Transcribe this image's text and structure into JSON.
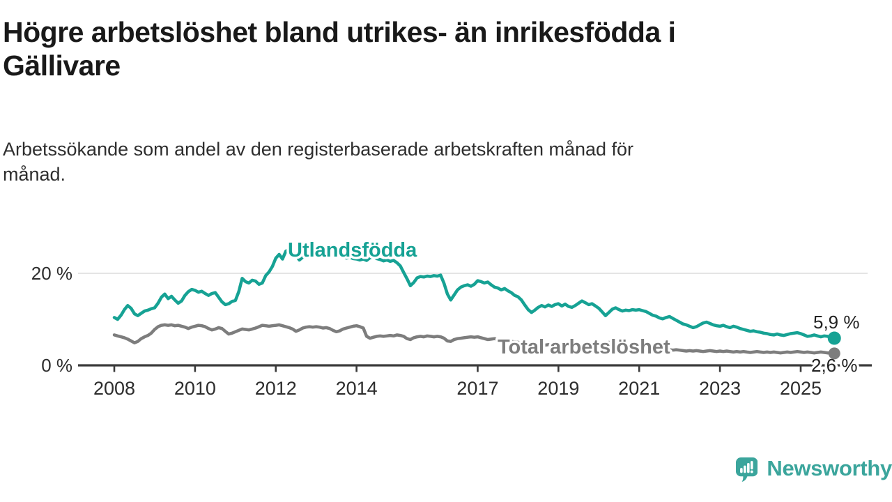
{
  "header": {
    "title_lines": [
      "Högre arbetslöshet bland utrikes- än inrikesfödda i",
      "Gällivare"
    ],
    "subtitle_lines": [
      "Arbetssökande som andel av den registerbaserade arbetskraften månad för",
      "månad."
    ]
  },
  "chart_data": {
    "type": "line",
    "title": "Arbetssökande som andel av den registerbaserade arbetskraften månad för månad",
    "x_unit": "year-month",
    "x_start": 2008.0,
    "x_step_months": 1,
    "x_end": 2025.833,
    "ylim": [
      0,
      29
    ],
    "grid": "horizontal-20-only",
    "legend_position": "inline-labels",
    "y_ticks": [
      {
        "value": 0,
        "label": "0 %",
        "grid": false
      },
      {
        "value": 20,
        "label": "20 %",
        "grid": true
      }
    ],
    "x_ticks": [
      {
        "year": 2008,
        "label": "2008"
      },
      {
        "year": 2010,
        "label": "2010"
      },
      {
        "year": 2012,
        "label": "2012"
      },
      {
        "year": 2014,
        "label": "2014"
      },
      {
        "year": 2017,
        "label": "2017"
      },
      {
        "year": 2019,
        "label": "2019"
      },
      {
        "year": 2021,
        "label": "2021"
      },
      {
        "year": 2023,
        "label": "2023"
      },
      {
        "year": 2025,
        "label": "2025"
      }
    ],
    "series": [
      {
        "name": "Utlandsfödda",
        "color": "#16a294",
        "end_label": "5,9 %",
        "end_value": 5.9,
        "values": [
          10.4,
          10.0,
          10.9,
          12.1,
          13.0,
          12.4,
          11.2,
          10.8,
          11.3,
          11.8,
          12.0,
          12.3,
          12.5,
          13.5,
          14.8,
          15.5,
          14.5,
          15.0,
          14.2,
          13.5,
          14.0,
          15.2,
          16.0,
          16.5,
          16.3,
          15.9,
          16.1,
          15.6,
          15.2,
          15.6,
          15.8,
          14.8,
          13.8,
          13.2,
          13.4,
          13.9,
          14.1,
          16.0,
          18.9,
          18.2,
          17.9,
          18.5,
          18.3,
          17.6,
          17.9,
          19.5,
          20.3,
          21.5,
          23.3,
          24.1,
          23.1,
          24.8,
          25.2,
          24.6,
          23.9,
          22.9,
          23.5,
          24.5,
          25.0,
          25.5,
          25.8,
          25.4,
          24.9,
          25.1,
          24.6,
          24.2,
          23.8,
          24.0,
          23.6,
          23.3,
          23.5,
          23.2,
          23.1,
          22.9,
          23.1,
          22.8,
          23.4,
          23.6,
          23.2,
          23.0,
          22.7,
          22.9,
          22.6,
          22.8,
          22.3,
          21.6,
          20.2,
          18.8,
          17.3,
          18.0,
          19.0,
          19.3,
          19.2,
          19.4,
          19.3,
          19.5,
          19.4,
          19.6,
          17.8,
          15.5,
          14.2,
          15.3,
          16.4,
          17.0,
          17.3,
          17.5,
          17.2,
          17.6,
          18.4,
          18.2,
          17.9,
          18.1,
          17.5,
          17.0,
          16.8,
          16.4,
          16.7,
          16.2,
          15.8,
          15.2,
          14.9,
          14.2,
          13.1,
          12.1,
          11.5,
          12.0,
          12.6,
          13.0,
          12.7,
          13.1,
          12.8,
          13.2,
          13.4,
          12.9,
          13.3,
          12.8,
          12.6,
          13.0,
          13.5,
          14.0,
          13.6,
          13.2,
          13.4,
          12.9,
          12.4,
          11.6,
          10.8,
          11.5,
          12.2,
          12.5,
          12.1,
          11.8,
          12.0,
          11.9,
          12.1,
          12.0,
          12.1,
          11.9,
          11.7,
          11.3,
          10.9,
          10.7,
          10.3,
          10.1,
          10.4,
          10.6,
          10.2,
          9.8,
          9.4,
          9.0,
          8.8,
          8.5,
          8.2,
          8.4,
          8.8,
          9.2,
          9.4,
          9.1,
          8.8,
          8.6,
          8.5,
          8.7,
          8.4,
          8.2,
          8.5,
          8.3,
          8.0,
          7.8,
          7.6,
          7.4,
          7.5,
          7.3,
          7.2,
          7.0,
          6.9,
          6.7,
          6.6,
          6.8,
          6.6,
          6.5,
          6.7,
          6.9,
          7.0,
          7.1,
          6.9,
          6.6,
          6.3,
          6.4,
          6.6,
          6.4,
          6.2,
          6.4,
          6.3,
          6.1,
          5.9
        ]
      },
      {
        "name": "Total arbetslöshet",
        "color": "#7d7d7d",
        "end_label": "2,6 %",
        "end_value": 2.6,
        "values": [
          6.6,
          6.4,
          6.2,
          6.0,
          5.7,
          5.3,
          4.9,
          5.2,
          5.8,
          6.2,
          6.5,
          7.0,
          7.8,
          8.4,
          8.7,
          8.8,
          8.7,
          8.8,
          8.6,
          8.7,
          8.5,
          8.3,
          8.0,
          8.3,
          8.5,
          8.7,
          8.6,
          8.4,
          8.0,
          7.7,
          7.9,
          8.2,
          8.0,
          7.4,
          6.8,
          7.0,
          7.3,
          7.6,
          7.9,
          7.8,
          7.7,
          7.9,
          8.1,
          8.4,
          8.7,
          8.6,
          8.5,
          8.6,
          8.7,
          8.8,
          8.6,
          8.4,
          8.2,
          7.9,
          7.4,
          7.7,
          8.1,
          8.3,
          8.4,
          8.3,
          8.4,
          8.3,
          8.1,
          8.2,
          8.0,
          7.6,
          7.3,
          7.5,
          7.9,
          8.1,
          8.3,
          8.5,
          8.6,
          8.4,
          8.1,
          6.3,
          5.9,
          6.1,
          6.3,
          6.4,
          6.3,
          6.4,
          6.5,
          6.4,
          6.6,
          6.5,
          6.3,
          5.8,
          5.6,
          6.0,
          6.2,
          6.3,
          6.2,
          6.4,
          6.3,
          6.2,
          6.3,
          6.2,
          5.9,
          5.3,
          5.2,
          5.6,
          5.8,
          5.9,
          6.0,
          6.1,
          6.2,
          6.1,
          6.2,
          6.0,
          5.8,
          5.6,
          5.7,
          5.8,
          5.6,
          5.5,
          5.4,
          5.3,
          5.2,
          5.1,
          5.0,
          4.9,
          4.8,
          4.7,
          4.6,
          4.7,
          4.6,
          4.5,
          4.4,
          4.5,
          4.4,
          4.3,
          4.4,
          4.3,
          4.2,
          4.3,
          4.2,
          4.1,
          4.2,
          4.3,
          4.2,
          4.1,
          4.2,
          4.3,
          4.5,
          4.6,
          4.8,
          5.0,
          4.9,
          4.8,
          4.7,
          4.6,
          4.5,
          4.4,
          4.3,
          4.2,
          4.1,
          4.0,
          3.9,
          3.8,
          3.7,
          3.6,
          3.5,
          3.6,
          3.5,
          3.4,
          3.3,
          3.4,
          3.3,
          3.2,
          3.1,
          3.2,
          3.1,
          3.2,
          3.1,
          3.0,
          3.1,
          3.2,
          3.1,
          3.0,
          3.1,
          3.0,
          3.1,
          3.0,
          2.9,
          3.0,
          2.9,
          3.0,
          2.9,
          2.8,
          2.9,
          3.0,
          2.9,
          2.8,
          2.9,
          2.8,
          2.9,
          2.8,
          2.7,
          2.8,
          2.9,
          2.8,
          2.9,
          3.0,
          2.9,
          2.8,
          2.9,
          2.8,
          2.7,
          2.8,
          2.9,
          2.8,
          2.7,
          2.7,
          2.6
        ]
      }
    ]
  },
  "style": {
    "axis_color": "#3a3a3a",
    "grid_color": "#dcdcdc",
    "tick_label_color": "#2d2d2d",
    "value_label_color": "#222222",
    "background": "#ffffff"
  },
  "branding": {
    "logo_text": "Newsworthy",
    "logo_color": "#3ba59c"
  }
}
